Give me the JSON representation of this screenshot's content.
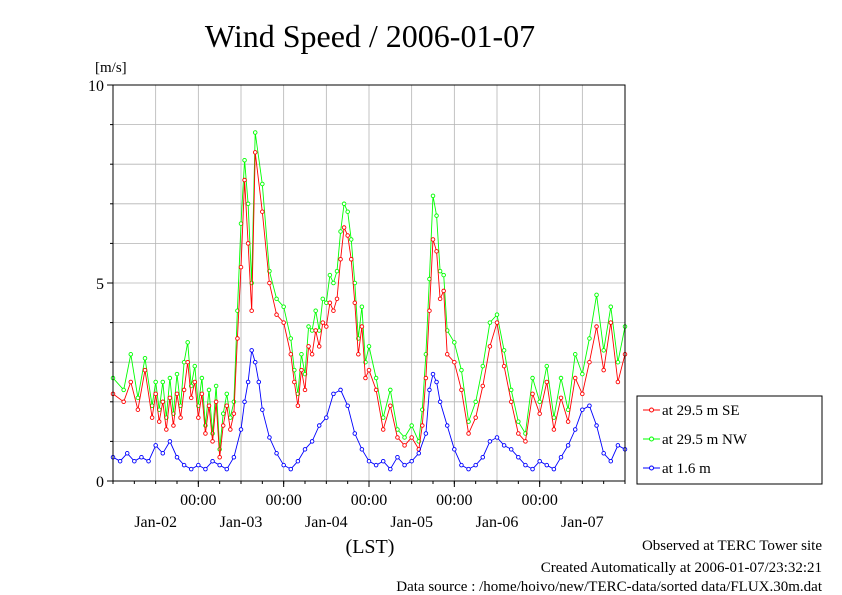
{
  "chart_data": {
    "type": "line",
    "title": "Wind Speed / 2006-01-07",
    "ylabel": "[m/s]",
    "xlabel": "(LST)",
    "ylim": [
      0,
      10
    ],
    "yticks": [
      "0",
      "5",
      "10"
    ],
    "xlim_hours": [
      0,
      144
    ],
    "x_hour_ticks": [
      "00:00",
      "00:00",
      "00:00",
      "00:00",
      "00:00"
    ],
    "x_day_ticks": [
      "Jan-02",
      "Jan-03",
      "Jan-04",
      "Jan-05",
      "Jan-06",
      "Jan-07"
    ],
    "grid": true,
    "legend_position": "right",
    "series": [
      {
        "name": "at 29.5 m SE",
        "color": "#ff0000",
        "x": [
          0,
          3,
          5,
          7,
          9,
          11,
          12,
          13,
          14,
          15,
          16,
          17,
          18,
          19,
          20,
          21,
          22,
          23,
          24,
          25,
          26,
          27,
          28,
          29,
          30,
          31,
          32,
          33,
          34,
          35,
          36,
          37,
          38,
          39,
          40,
          42,
          44,
          46,
          48,
          50,
          51,
          52,
          53,
          54,
          55,
          56,
          57,
          58,
          59,
          60,
          61,
          62,
          63,
          64,
          65,
          66,
          67,
          68,
          69,
          70,
          71,
          72,
          74,
          76,
          78,
          80,
          82,
          84,
          86,
          87,
          88,
          89,
          90,
          91,
          92,
          93,
          94,
          96,
          98,
          100,
          102,
          104,
          106,
          108,
          110,
          112,
          114,
          116,
          118,
          120,
          122,
          124,
          126,
          128,
          130,
          132,
          134,
          136,
          138,
          140,
          142,
          144
        ],
        "values": [
          2.2,
          2.0,
          2.5,
          1.8,
          2.8,
          1.6,
          2.2,
          1.5,
          2.0,
          1.3,
          2.1,
          1.4,
          2.2,
          1.6,
          2.3,
          3.0,
          2.1,
          2.5,
          1.6,
          2.2,
          1.2,
          1.9,
          1.0,
          2.0,
          0.6,
          1.4,
          1.9,
          1.3,
          1.7,
          3.6,
          5.4,
          7.6,
          6.0,
          4.3,
          8.3,
          6.8,
          5.0,
          4.2,
          4.0,
          3.2,
          2.5,
          1.9,
          2.8,
          2.3,
          3.4,
          3.2,
          3.8,
          3.4,
          4.0,
          3.9,
          4.5,
          4.3,
          4.6,
          5.6,
          6.4,
          6.2,
          5.6,
          4.5,
          3.2,
          3.9,
          2.6,
          2.8,
          2.3,
          1.3,
          1.9,
          1.1,
          0.9,
          1.1,
          0.8,
          1.4,
          2.6,
          4.3,
          6.1,
          5.8,
          4.6,
          4.8,
          3.2,
          3.0,
          2.3,
          1.2,
          1.6,
          2.4,
          3.4,
          4.0,
          2.9,
          2.0,
          1.2,
          1.0,
          2.2,
          1.7,
          2.5,
          1.3,
          2.1,
          1.5,
          2.6,
          2.2,
          3.0,
          3.9,
          2.8,
          4.0,
          2.5,
          3.2
        ],
        "markers": true
      },
      {
        "name": "at 29.5 m NW",
        "color": "#00ff00",
        "x": [
          0,
          3,
          5,
          7,
          9,
          11,
          12,
          13,
          14,
          15,
          16,
          17,
          18,
          19,
          20,
          21,
          22,
          23,
          24,
          25,
          26,
          27,
          28,
          29,
          30,
          31,
          32,
          33,
          34,
          35,
          36,
          37,
          38,
          39,
          40,
          42,
          44,
          46,
          48,
          50,
          51,
          52,
          53,
          54,
          55,
          56,
          57,
          58,
          59,
          60,
          61,
          62,
          63,
          64,
          65,
          66,
          67,
          68,
          69,
          70,
          71,
          72,
          74,
          76,
          78,
          80,
          82,
          84,
          86,
          87,
          88,
          89,
          90,
          91,
          92,
          93,
          94,
          96,
          98,
          100,
          102,
          104,
          106,
          108,
          110,
          112,
          114,
          116,
          118,
          120,
          122,
          124,
          126,
          128,
          130,
          132,
          134,
          136,
          138,
          140,
          142,
          144
        ],
        "values": [
          2.6,
          2.3,
          3.2,
          2.1,
          3.1,
          1.9,
          2.5,
          1.8,
          2.5,
          1.6,
          2.6,
          1.7,
          2.7,
          1.9,
          3.0,
          3.5,
          2.4,
          2.9,
          1.9,
          2.6,
          1.4,
          2.3,
          1.2,
          2.4,
          0.8,
          1.7,
          2.2,
          1.6,
          2.0,
          4.3,
          6.5,
          8.1,
          7.0,
          5.0,
          8.8,
          7.5,
          5.3,
          4.6,
          4.4,
          3.6,
          2.8,
          2.2,
          3.2,
          2.7,
          3.9,
          3.8,
          4.3,
          3.8,
          4.6,
          4.5,
          5.2,
          5.0,
          5.3,
          6.3,
          7.0,
          6.8,
          6.1,
          5.0,
          3.6,
          4.4,
          3.0,
          3.4,
          2.6,
          1.6,
          2.3,
          1.3,
          1.1,
          1.4,
          1.0,
          1.8,
          3.2,
          5.1,
          7.2,
          6.7,
          5.3,
          5.2,
          3.8,
          3.5,
          2.8,
          1.5,
          2.0,
          2.9,
          4.0,
          4.2,
          3.3,
          2.3,
          1.5,
          1.2,
          2.6,
          2.0,
          2.9,
          1.6,
          2.6,
          1.8,
          3.2,
          2.7,
          3.6,
          4.7,
          3.3,
          4.4,
          3.0,
          3.9
        ],
        "markers": true
      },
      {
        "name": "at 1.6 m",
        "color": "#0000ff",
        "x": [
          0,
          2,
          4,
          6,
          8,
          10,
          12,
          14,
          16,
          18,
          20,
          22,
          24,
          26,
          28,
          30,
          32,
          34,
          36,
          37,
          38,
          39,
          40,
          41,
          42,
          44,
          46,
          48,
          50,
          52,
          54,
          56,
          58,
          60,
          62,
          64,
          66,
          68,
          70,
          72,
          74,
          76,
          78,
          80,
          82,
          84,
          86,
          88,
          89,
          90,
          91,
          92,
          94,
          96,
          98,
          100,
          102,
          104,
          106,
          108,
          110,
          112,
          114,
          116,
          118,
          120,
          122,
          124,
          126,
          128,
          130,
          132,
          134,
          136,
          138,
          140,
          142,
          144
        ],
        "values": [
          0.6,
          0.5,
          0.7,
          0.5,
          0.6,
          0.5,
          0.9,
          0.7,
          1.0,
          0.6,
          0.4,
          0.3,
          0.4,
          0.3,
          0.5,
          0.4,
          0.3,
          0.6,
          1.3,
          2.0,
          2.5,
          3.3,
          3.0,
          2.5,
          1.8,
          1.1,
          0.7,
          0.4,
          0.3,
          0.5,
          0.8,
          1.0,
          1.4,
          1.6,
          2.2,
          2.3,
          1.9,
          1.2,
          0.8,
          0.5,
          0.4,
          0.5,
          0.3,
          0.6,
          0.4,
          0.5,
          0.7,
          1.2,
          2.3,
          2.7,
          2.5,
          2.0,
          1.4,
          0.8,
          0.4,
          0.3,
          0.4,
          0.6,
          1.0,
          1.1,
          0.9,
          0.8,
          0.6,
          0.4,
          0.3,
          0.5,
          0.4,
          0.3,
          0.6,
          0.9,
          1.3,
          1.8,
          1.9,
          1.4,
          0.7,
          0.5,
          0.9,
          0.8
        ],
        "markers": true
      }
    ]
  },
  "footer": {
    "line1": "Observed at TERC Tower site",
    "line2": "Created Automatically at 2006-01-07/23:32:21",
    "line3": "Data source : /home/hoivo/new/TERC-data/sorted  data/FLUX.30m.dat"
  }
}
